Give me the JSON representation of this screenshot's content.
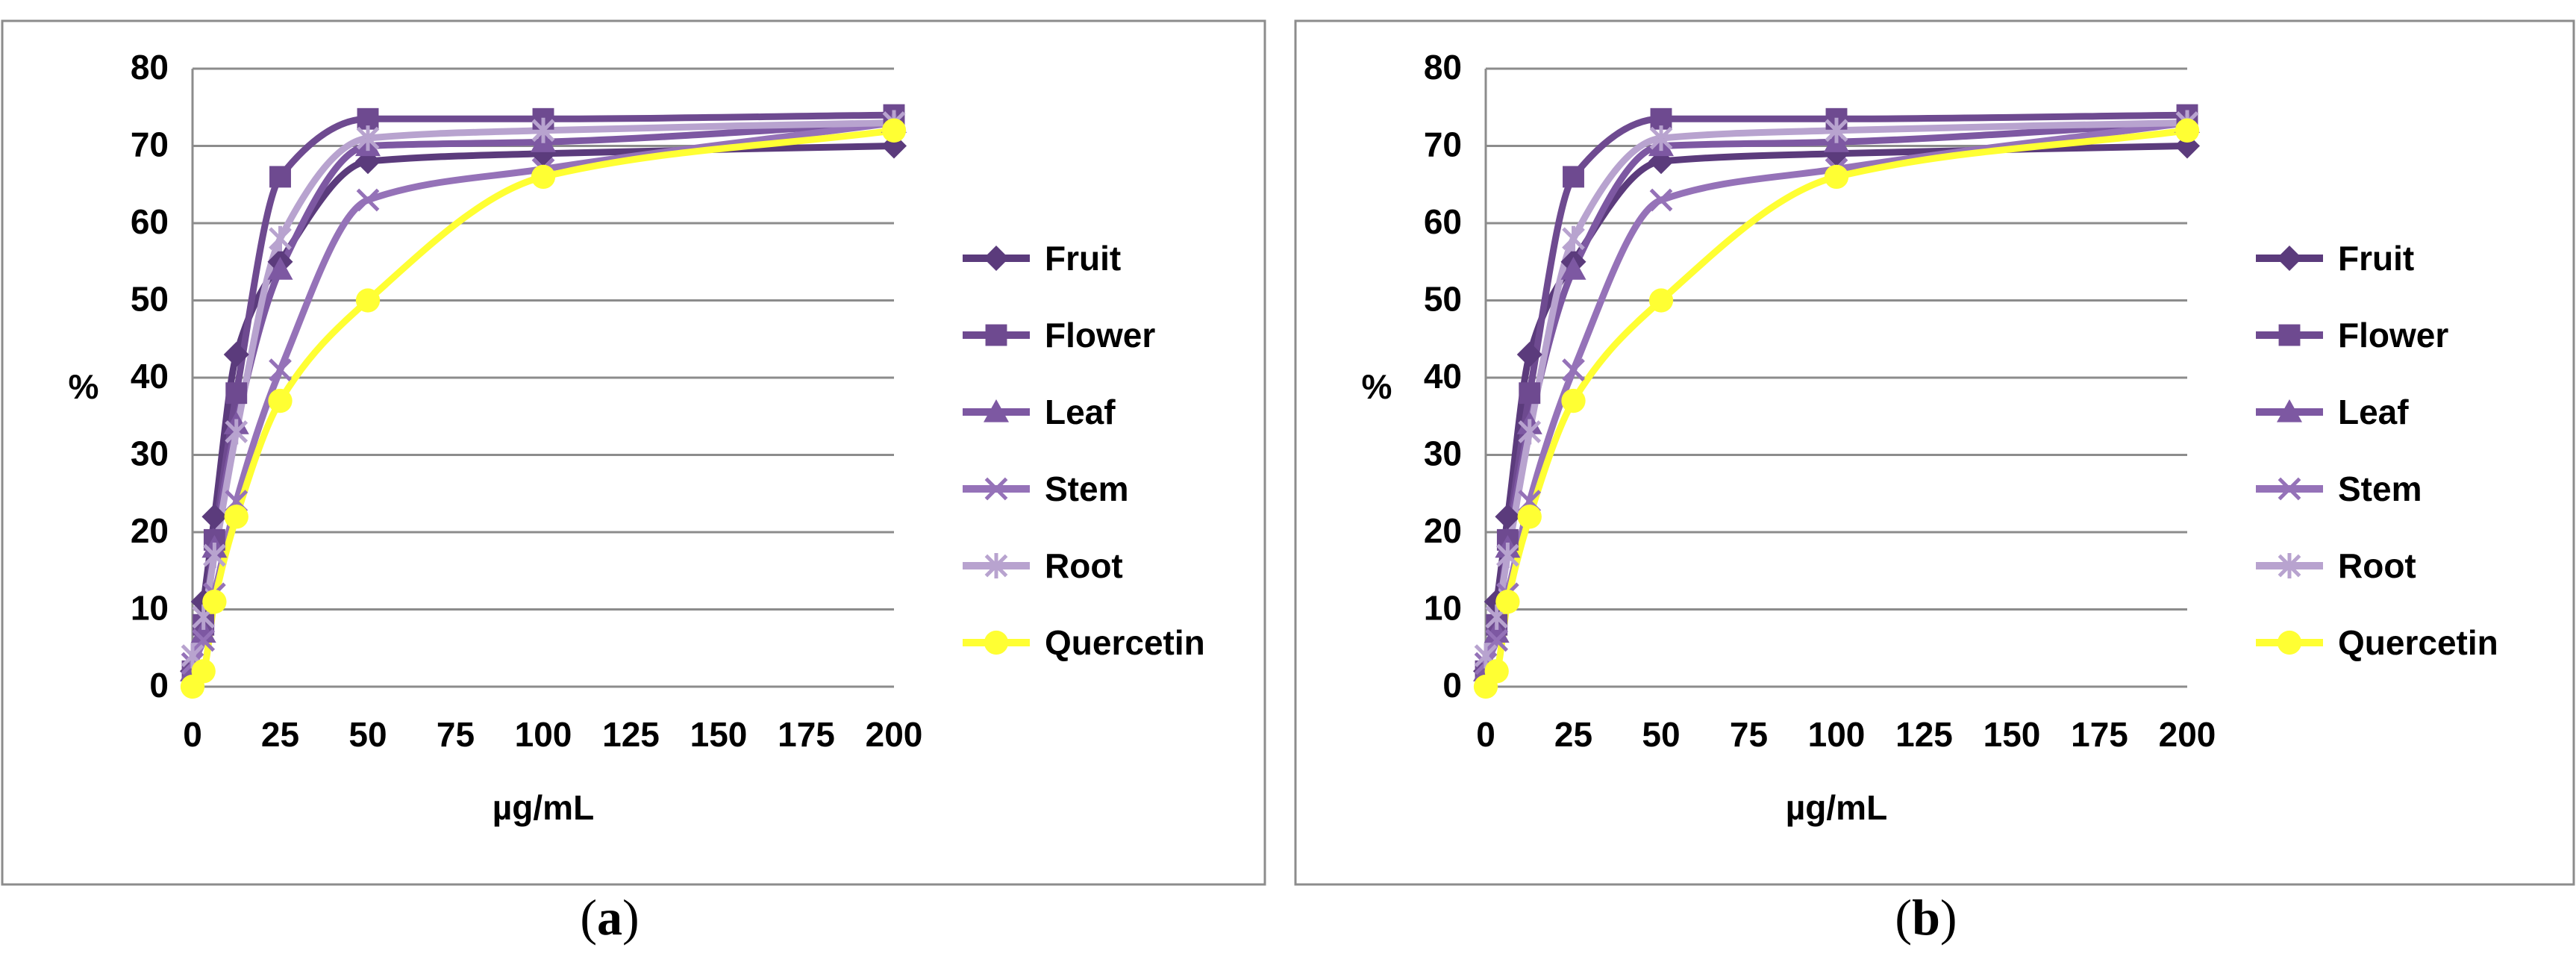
{
  "colors": {
    "fruit": "#5b3b7c",
    "flower": "#6e4a90",
    "leaf": "#7d58a2",
    "stem": "#9572b8",
    "root": "#b8a3cf",
    "quercetin": "#ffff33",
    "grid": "#8c8c8c",
    "frame": "#8c8c8c"
  },
  "chart_data": [
    {
      "type": "line",
      "panel": "a",
      "label": "a",
      "xlabel": "µg/mL",
      "ylabel": "%",
      "xlim": [
        0,
        200
      ],
      "ylim": [
        0,
        80
      ],
      "x_ticks": [
        "0",
        "25",
        "50",
        "75",
        "100",
        "125",
        "150",
        "175",
        "200"
      ],
      "y_ticks": [
        "0",
        "10",
        "20",
        "30",
        "40",
        "50",
        "60",
        "70",
        "80"
      ],
      "grid": true,
      "legend": "right",
      "x": [
        0,
        3.125,
        6.25,
        12.5,
        25,
        50,
        100,
        200
      ],
      "series": [
        {
          "name": "Fruit",
          "marker": "diamond",
          "values": [
            2,
            11,
            22,
            43,
            55,
            68,
            69,
            70
          ]
        },
        {
          "name": "Flower",
          "marker": "square",
          "values": [
            2,
            8,
            19,
            38,
            66,
            73.5,
            73.5,
            74
          ]
        },
        {
          "name": "Leaf",
          "marker": "triangle",
          "values": [
            2,
            7,
            18,
            34,
            54,
            70,
            70.5,
            73
          ]
        },
        {
          "name": "Stem",
          "marker": "x",
          "values": [
            3,
            6,
            12,
            24,
            41,
            63,
            67,
            73
          ]
        },
        {
          "name": "Root",
          "marker": "star",
          "values": [
            4,
            9,
            17,
            33,
            58,
            71,
            72,
            73
          ]
        },
        {
          "name": "Quercetin",
          "marker": "circle",
          "values": [
            0,
            2,
            11,
            22,
            37,
            50,
            66,
            72
          ]
        }
      ]
    },
    {
      "type": "line",
      "panel": "b",
      "label": "b",
      "xlabel": "µg/mL",
      "ylabel": "%",
      "xlim": [
        0,
        200
      ],
      "ylim": [
        0,
        80
      ],
      "x_ticks": [
        "0",
        "25",
        "50",
        "75",
        "100",
        "125",
        "150",
        "175",
        "200"
      ],
      "y_ticks": [
        "0",
        "10",
        "20",
        "30",
        "40",
        "50",
        "60",
        "70",
        "80"
      ],
      "grid": true,
      "legend": "right",
      "x": [
        0,
        3.125,
        6.25,
        12.5,
        25,
        50,
        100,
        200
      ],
      "series": [
        {
          "name": "Fruit",
          "marker": "diamond",
          "values": [
            2,
            11,
            22,
            43,
            55,
            68,
            69,
            70
          ]
        },
        {
          "name": "Flower",
          "marker": "square",
          "values": [
            2,
            8,
            19,
            38,
            66,
            73.5,
            73.5,
            74
          ]
        },
        {
          "name": "Leaf",
          "marker": "triangle",
          "values": [
            2,
            7,
            18,
            34,
            54,
            70,
            70.5,
            73
          ]
        },
        {
          "name": "Stem",
          "marker": "x",
          "values": [
            3,
            6,
            12,
            24,
            41,
            63,
            67,
            73
          ]
        },
        {
          "name": "Root",
          "marker": "star",
          "values": [
            4,
            9,
            17,
            33,
            58,
            71,
            72,
            73
          ]
        },
        {
          "name": "Quercetin",
          "marker": "circle",
          "values": [
            0,
            2,
            11,
            22,
            37,
            50,
            66,
            72
          ]
        }
      ]
    }
  ]
}
